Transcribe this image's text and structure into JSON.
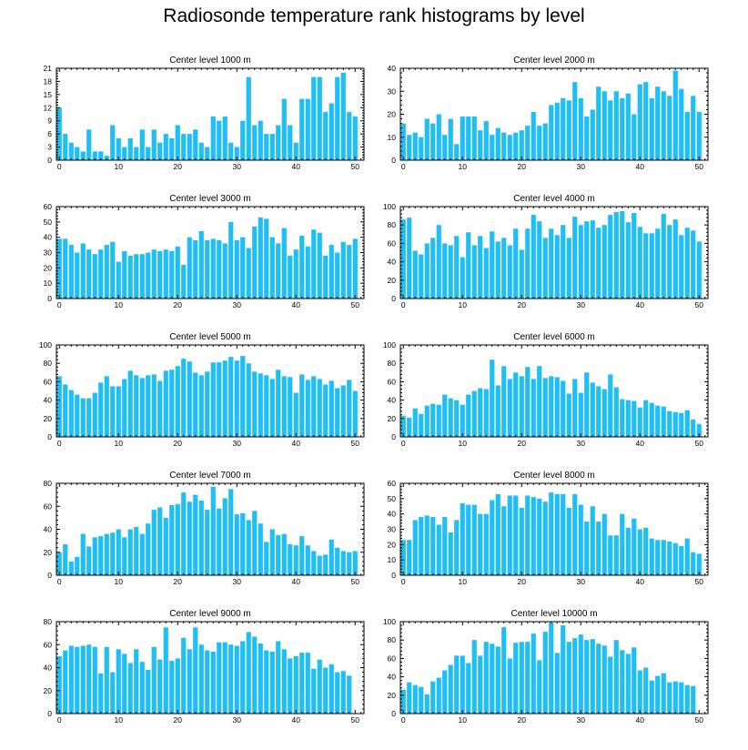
{
  "title": "Radiosonde temperature rank histograms by level",
  "colors": {
    "bar": "#1fbff5",
    "axis": "#000000"
  },
  "chart_data": [
    {
      "type": "bar",
      "title": "Center level 1000 m",
      "xlim": [
        -0.5,
        51.5
      ],
      "ylim": [
        0,
        21
      ],
      "xticks": [
        0,
        10,
        20,
        30,
        40,
        50
      ],
      "yticks": [
        0,
        3,
        6,
        9,
        12,
        15,
        18,
        21
      ],
      "values": [
        12,
        6,
        4,
        3,
        2,
        7,
        2,
        2,
        1,
        8,
        5,
        3,
        5,
        3,
        7,
        3,
        7,
        4,
        6,
        5,
        8,
        6,
        6,
        7,
        4,
        3,
        10,
        9,
        10,
        4,
        3,
        9,
        19,
        8,
        9,
        6,
        6,
        8,
        14,
        8,
        4,
        14,
        14,
        19,
        19,
        11,
        13,
        19,
        20,
        11,
        10,
        0
      ]
    },
    {
      "type": "bar",
      "title": "Center level 2000 m",
      "xlim": [
        -0.5,
        51.5
      ],
      "ylim": [
        0,
        40
      ],
      "xticks": [
        0,
        10,
        20,
        30,
        40,
        50
      ],
      "yticks": [
        0,
        10,
        20,
        30,
        40
      ],
      "values": [
        16,
        11,
        12,
        10,
        18,
        16,
        20,
        11,
        18,
        7,
        19,
        19,
        19,
        13,
        17,
        11,
        14,
        12,
        11,
        12,
        13,
        15,
        21,
        15,
        16,
        24,
        25,
        27,
        26,
        34,
        27,
        19,
        22,
        32,
        30,
        26,
        30,
        27,
        29,
        20,
        33,
        34,
        27,
        32,
        30,
        28,
        39,
        31,
        21,
        28,
        21,
        0
      ]
    },
    {
      "type": "bar",
      "title": "Center level 3000 m",
      "xlim": [
        -0.5,
        51.5
      ],
      "ylim": [
        0,
        60
      ],
      "xticks": [
        0,
        10,
        20,
        30,
        40,
        50
      ],
      "yticks": [
        0,
        10,
        20,
        30,
        40,
        50,
        60
      ],
      "values": [
        39,
        39,
        35,
        30,
        36,
        32,
        29,
        32,
        35,
        37,
        24,
        31,
        28,
        29,
        29,
        30,
        32,
        31,
        32,
        31,
        34,
        22,
        40,
        38,
        44,
        38,
        39,
        38,
        36,
        50,
        38,
        40,
        33,
        47,
        53,
        52,
        40,
        36,
        46,
        28,
        32,
        41,
        34,
        45,
        43,
        28,
        35,
        30,
        37,
        35,
        39,
        0
      ]
    },
    {
      "type": "bar",
      "title": "Center level 4000 m",
      "xlim": [
        -0.5,
        51.5
      ],
      "ylim": [
        0,
        100
      ],
      "xticks": [
        0,
        10,
        20,
        30,
        40,
        50
      ],
      "yticks": [
        0,
        20,
        40,
        60,
        80,
        100
      ],
      "values": [
        86,
        88,
        52,
        48,
        60,
        66,
        80,
        60,
        58,
        68,
        45,
        72,
        58,
        68,
        55,
        73,
        62,
        66,
        58,
        76,
        53,
        76,
        91,
        84,
        66,
        76,
        69,
        80,
        66,
        89,
        80,
        84,
        85,
        77,
        80,
        91,
        94,
        95,
        83,
        93,
        78,
        71,
        71,
        76,
        92,
        80,
        86,
        69,
        77,
        74,
        62,
        0
      ]
    },
    {
      "type": "bar",
      "title": "Center level 5000 m",
      "xlim": [
        -0.5,
        51.5
      ],
      "ylim": [
        0,
        100
      ],
      "xticks": [
        0,
        10,
        20,
        30,
        40,
        50
      ],
      "yticks": [
        0,
        20,
        40,
        60,
        80,
        100
      ],
      "values": [
        66,
        57,
        51,
        46,
        42,
        42,
        48,
        59,
        66,
        55,
        55,
        63,
        72,
        67,
        64,
        67,
        68,
        61,
        72,
        73,
        77,
        85,
        82,
        70,
        67,
        71,
        81,
        81,
        83,
        87,
        83,
        88,
        80,
        71,
        69,
        67,
        63,
        73,
        66,
        65,
        48,
        68,
        62,
        66,
        63,
        57,
        61,
        53,
        56,
        62,
        50,
        0
      ]
    },
    {
      "type": "bar",
      "title": "Center level 6000 m",
      "xlim": [
        -0.5,
        51.5
      ],
      "ylim": [
        0,
        100
      ],
      "xticks": [
        0,
        10,
        20,
        30,
        40,
        50
      ],
      "yticks": [
        0,
        20,
        40,
        60,
        80,
        100
      ],
      "values": [
        23,
        21,
        31,
        25,
        34,
        36,
        35,
        46,
        42,
        40,
        35,
        46,
        50,
        53,
        52,
        84,
        56,
        77,
        63,
        70,
        66,
        76,
        63,
        77,
        64,
        66,
        65,
        61,
        47,
        63,
        48,
        70,
        59,
        55,
        52,
        68,
        54,
        41,
        40,
        39,
        32,
        40,
        37,
        34,
        33,
        28,
        27,
        26,
        29,
        19,
        14,
        0
      ]
    },
    {
      "type": "bar",
      "title": "Center level 7000 m",
      "xlim": [
        -0.5,
        51.5
      ],
      "ylim": [
        0,
        80
      ],
      "xticks": [
        0,
        10,
        20,
        30,
        40,
        50
      ],
      "yticks": [
        0,
        20,
        40,
        60,
        80
      ],
      "values": [
        20,
        27,
        12,
        16,
        36,
        25,
        33,
        34,
        36,
        37,
        40,
        33,
        40,
        42,
        36,
        45,
        57,
        59,
        50,
        61,
        62,
        72,
        64,
        70,
        65,
        57,
        77,
        58,
        67,
        75,
        53,
        54,
        48,
        56,
        45,
        29,
        40,
        35,
        36,
        27,
        26,
        34,
        26,
        21,
        17,
        18,
        31,
        24,
        21,
        20,
        21,
        0
      ]
    },
    {
      "type": "bar",
      "title": "Center level 8000 m",
      "xlim": [
        -0.5,
        51.5
      ],
      "ylim": [
        0,
        60
      ],
      "xticks": [
        0,
        10,
        20,
        30,
        40,
        50
      ],
      "yticks": [
        0,
        10,
        20,
        30,
        40,
        50,
        60
      ],
      "values": [
        23,
        23,
        36,
        38,
        39,
        38,
        33,
        38,
        28,
        36,
        47,
        46,
        46,
        40,
        40,
        49,
        53,
        45,
        52,
        52,
        44,
        52,
        51,
        50,
        48,
        54,
        53,
        53,
        44,
        53,
        46,
        35,
        45,
        35,
        40,
        26,
        26,
        40,
        31,
        37,
        30,
        31,
        24,
        23,
        23,
        22,
        21,
        19,
        24,
        15,
        14,
        0
      ]
    },
    {
      "type": "bar",
      "title": "Center level 9000 m",
      "xlim": [
        -0.5,
        51.5
      ],
      "ylim": [
        0,
        80
      ],
      "xticks": [
        0,
        10,
        20,
        30,
        40,
        50
      ],
      "yticks": [
        0,
        20,
        40,
        60,
        80
      ],
      "values": [
        50,
        55,
        59,
        58,
        59,
        60,
        58,
        35,
        58,
        36,
        56,
        52,
        44,
        56,
        45,
        38,
        58,
        47,
        75,
        46,
        48,
        66,
        56,
        75,
        60,
        55,
        54,
        62,
        62,
        60,
        59,
        63,
        71,
        67,
        61,
        55,
        54,
        63,
        56,
        48,
        50,
        53,
        53,
        39,
        47,
        40,
        43,
        36,
        37,
        33,
        0
      ]
    },
    {
      "type": "bar",
      "title": "Center level 10000 m",
      "xlim": [
        -0.5,
        51.5
      ],
      "ylim": [
        0,
        100
      ],
      "xticks": [
        0,
        10,
        20,
        30,
        40,
        50
      ],
      "yticks": [
        0,
        20,
        40,
        60,
        80,
        100
      ],
      "values": [
        26,
        34,
        31,
        29,
        21,
        35,
        39,
        47,
        53,
        63,
        63,
        55,
        80,
        63,
        78,
        76,
        73,
        94,
        60,
        77,
        78,
        78,
        87,
        58,
        89,
        99,
        66,
        96,
        78,
        82,
        86,
        80,
        81,
        76,
        74,
        62,
        80,
        69,
        65,
        72,
        47,
        50,
        36,
        41,
        44,
        34,
        35,
        34,
        31,
        30,
        0
      ]
    }
  ]
}
